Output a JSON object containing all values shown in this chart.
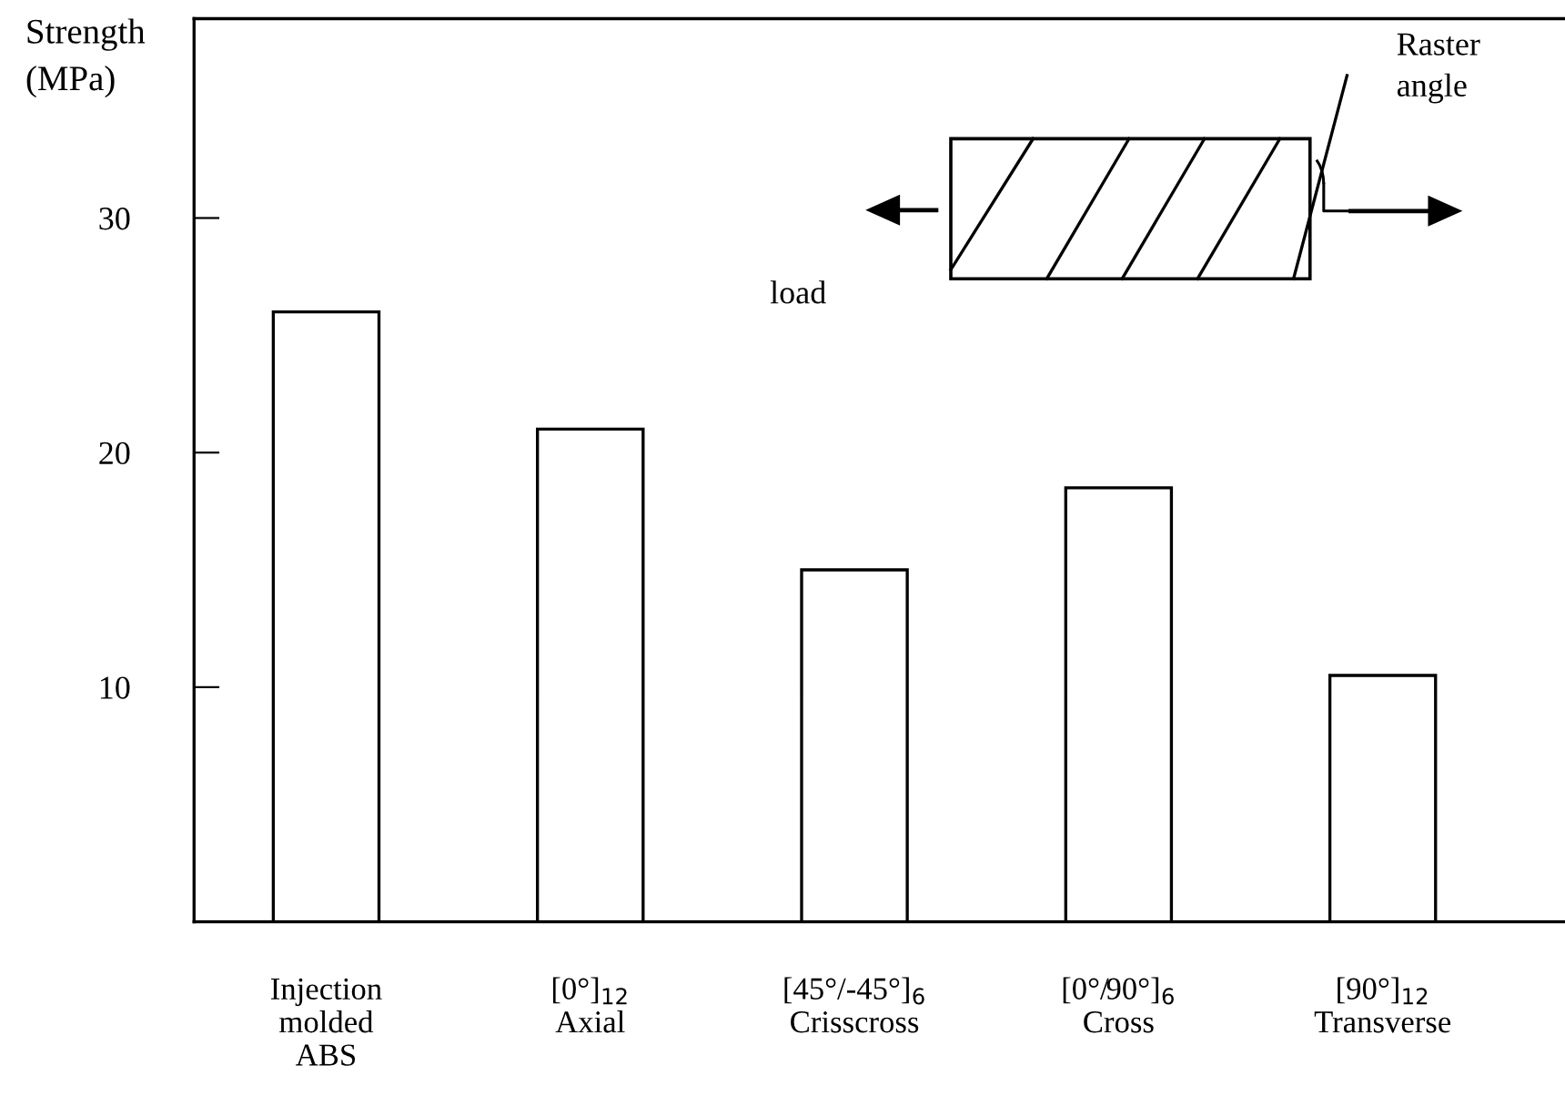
{
  "chart_data": {
    "type": "bar",
    "ylabel": "Strength\n(MPa)",
    "categories": [
      "Injection\nmolded\nABS",
      "[0°]$_{12}$\nAxial",
      "[45°/-45°]$_{6}$\nCrisscross",
      "[0°/90°]$_{6}$\nCross",
      "[90°]$_{12}$\nTransverse"
    ],
    "values": [
      26,
      21,
      15,
      18.5,
      10.5
    ],
    "color": "#ffffff",
    "ylim": [
      0,
      38.5
    ],
    "yticks": [
      10,
      20,
      30
    ],
    "grid": false,
    "annotations": [
      "Raster\nangle",
      "load"
    ]
  }
}
